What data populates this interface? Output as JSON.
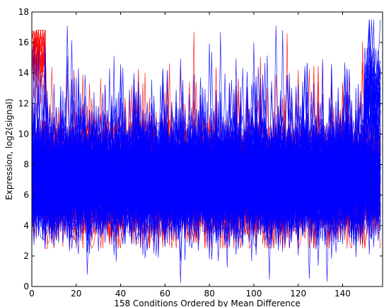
{
  "chart_data": {
    "type": "line",
    "title": "",
    "xlabel": "158 Conditions Ordered by Mean Difference",
    "ylabel": "Expression, log2(signal)",
    "xlim": [
      0,
      158
    ],
    "ylim": [
      0,
      18
    ],
    "x_ticks": [
      0,
      20,
      40,
      60,
      80,
      100,
      120,
      140
    ],
    "y_ticks": [
      0,
      2,
      4,
      6,
      8,
      10,
      12,
      14,
      16,
      18
    ],
    "x_tick_labels": [
      "0",
      "20",
      "40",
      "60",
      "80",
      "100",
      "120",
      "140"
    ],
    "y_tick_labels": [
      "0",
      "2",
      "4",
      "6",
      "8",
      "10",
      "12",
      "14",
      "16",
      "18"
    ],
    "grid": false,
    "legend": "none",
    "n_conditions": 158,
    "series_groups": [
      {
        "color": "#ff0000",
        "line_count": 60,
        "typical_range": [
          2.5,
          16.8
        ],
        "center": 7.0,
        "note_regions": [
          {
            "x": [
              0,
              6
            ],
            "level": 15.5
          },
          {
            "x": [
              150,
              158
            ],
            "level": 7.5
          }
        ]
      },
      {
        "color": "#0000ff",
        "line_count": 120,
        "typical_range": [
          0.2,
          17.5
        ],
        "center": 7.0,
        "note_regions": [
          {
            "x": [
              150,
              158
            ],
            "level": 12.5
          }
        ]
      }
    ]
  }
}
